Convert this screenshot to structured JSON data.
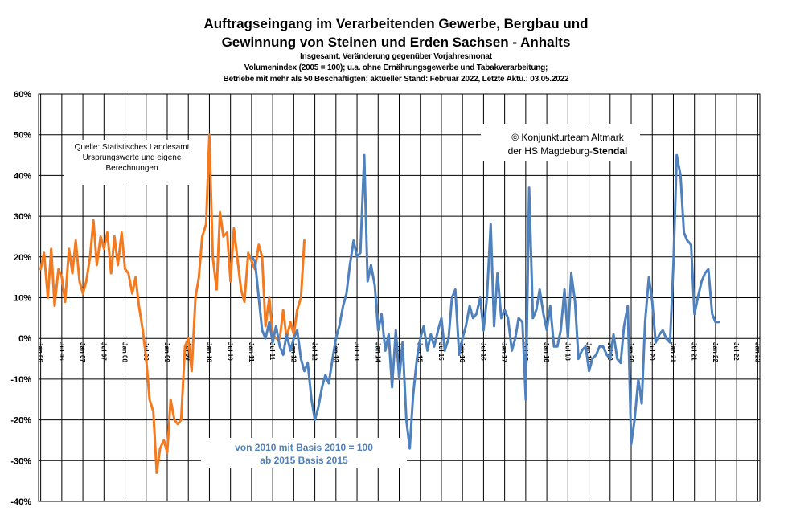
{
  "chart_data": {
    "type": "line",
    "title": "Auftragseingang  im Verarbeitenden  Gewerbe, Bergbau  und",
    "title_line2": "Gewinnung  von Steinen  und  Erden Sachsen - Anhalts",
    "subtitle_lines": [
      "Insgesamt, Veränderung gegenüber Vorjahresmonat",
      "Volumenindex (2005 = 100); u.a. ohne Ernährungsgewerbe und Tabakverarbeitung;",
      "Betriebe mit mehr als 50 Beschäftigten; aktueller Stand: Februar  2022,  Letzte Aktu.: 03.05.2022"
    ],
    "ylim": [
      -40,
      60
    ],
    "yticks": [
      60,
      50,
      40,
      30,
      20,
      10,
      0,
      -10,
      -20,
      -30,
      -40
    ],
    "ytick_labels": [
      "60%",
      "50%",
      "40%",
      "30%",
      "20%",
      "10%",
      "0%",
      "-10%",
      "-20%",
      "-30%",
      "-40%"
    ],
    "xlim": [
      2005.95,
      2023.05
    ],
    "xticks": [
      2006,
      2006.5,
      2007,
      2007.5,
      2008,
      2008.5,
      2009,
      2009.5,
      2010,
      2010.5,
      2011,
      2011.5,
      2012,
      2012.5,
      2013,
      2013.5,
      2014,
      2014.5,
      2015,
      2015.5,
      2016,
      2016.5,
      2017,
      2017.5,
      2018,
      2018.5,
      2019,
      2019.5,
      2020,
      2020.5,
      2021,
      2021.5,
      2022,
      2022.5,
      2023
    ],
    "xtick_labels": [
      "Jan 06",
      "Jul 06",
      "Jan 07",
      "Jul 07",
      "Jan 08",
      "Jul 08",
      "Jan 09",
      "Jul 09",
      "Jan 10",
      "Jul 10",
      "Jan 11",
      "Jul 11",
      "Jan 12",
      "Jul 12",
      "Jan 13",
      "Jul 13",
      "Jan 14",
      "Jul 14",
      "Jan 15",
      "Jul 15",
      "Jan 16",
      "Jul 16",
      "Jan 17",
      "Jul 17",
      "Jan 18",
      "Jul 18",
      "Jan 19",
      "Jul 19",
      "Jan 20",
      "Jul 20",
      "Jan 21",
      "Jul 21",
      "Jan 22",
      "Jul 22",
      "Jan 23"
    ],
    "grid": true,
    "series": [
      {
        "color": "#f47a1f",
        "x": [
          2006.0,
          2006.08,
          2006.17,
          2006.25,
          2006.33,
          2006.42,
          2006.5,
          2006.58,
          2006.67,
          2006.75,
          2006.83,
          2006.92,
          2007.0,
          2007.08,
          2007.17,
          2007.25,
          2007.33,
          2007.42,
          2007.5,
          2007.58,
          2007.67,
          2007.75,
          2007.83,
          2007.92,
          2008.0,
          2008.08,
          2008.17,
          2008.25,
          2008.33,
          2008.42,
          2008.5,
          2008.58,
          2008.67,
          2008.75,
          2008.83,
          2008.92,
          2009.0,
          2009.08,
          2009.17,
          2009.25,
          2009.33,
          2009.42,
          2009.5,
          2009.58,
          2009.67,
          2009.75,
          2009.83,
          2009.92,
          2010.0,
          2010.08,
          2010.17,
          2010.25,
          2010.33,
          2010.42,
          2010.5,
          2010.58,
          2010.67,
          2010.75,
          2010.83,
          2010.92,
          2011.0,
          2011.08,
          2011.17,
          2011.25,
          2011.33,
          2011.42,
          2011.5,
          2011.58,
          2011.67,
          2011.75,
          2011.83,
          2011.92,
          2012.0,
          2012.08,
          2012.17,
          2012.25
        ],
        "values": [
          17,
          21,
          10,
          22,
          8,
          17,
          15,
          9,
          22,
          16,
          24,
          14,
          11,
          14,
          20,
          29,
          18,
          25,
          22,
          26,
          16,
          25,
          18,
          26,
          17,
          16,
          11,
          15,
          8,
          2,
          -5,
          -15,
          -18,
          -33,
          -27,
          -25,
          -28,
          -15,
          -20,
          -21,
          -20,
          -2,
          0,
          -8,
          10,
          15,
          25,
          28,
          50,
          20,
          12,
          31,
          25,
          26,
          14,
          27,
          19,
          12,
          9,
          21,
          19,
          17,
          23,
          20,
          3,
          10,
          1,
          0,
          0,
          7,
          0,
          4,
          1,
          7,
          10,
          24
        ]
      },
      {
        "color": "#4f81bd",
        "x": [
          2011.0,
          2011.08,
          2011.17,
          2011.25,
          2011.33,
          2011.42,
          2011.5,
          2011.58,
          2011.67,
          2011.75,
          2011.83,
          2011.92,
          2012.0,
          2012.08,
          2012.17,
          2012.25,
          2012.33,
          2012.42,
          2012.5,
          2012.58,
          2012.67,
          2012.75,
          2012.83,
          2012.92,
          2013.0,
          2013.08,
          2013.17,
          2013.25,
          2013.33,
          2013.42,
          2013.5,
          2013.58,
          2013.67,
          2013.75,
          2013.83,
          2013.92,
          2014.0,
          2014.08,
          2014.17,
          2014.25,
          2014.33,
          2014.42,
          2014.5,
          2014.58,
          2014.67,
          2014.75,
          2014.83,
          2014.92,
          2015.0,
          2015.08,
          2015.17,
          2015.25,
          2015.33,
          2015.42,
          2015.5,
          2015.58,
          2015.67,
          2015.75,
          2015.83,
          2015.92,
          2016.0,
          2016.08,
          2016.17,
          2016.25,
          2016.33,
          2016.42,
          2016.5,
          2016.58,
          2016.67,
          2016.75,
          2016.83,
          2016.92,
          2017.0,
          2017.08,
          2017.17,
          2017.25,
          2017.33,
          2017.42,
          2017.5,
          2017.58,
          2017.67,
          2017.75,
          2017.83,
          2017.92,
          2018.0,
          2018.08,
          2018.17,
          2018.25,
          2018.33,
          2018.42,
          2018.5,
          2018.58,
          2018.67,
          2018.75,
          2018.83,
          2018.92,
          2019.0,
          2019.08,
          2019.17,
          2019.25,
          2019.33,
          2019.42,
          2019.5,
          2019.58,
          2019.67,
          2019.75,
          2019.83,
          2019.92,
          2020.0,
          2020.08,
          2020.17,
          2020.25,
          2020.33,
          2020.42,
          2020.5,
          2020.58,
          2020.67,
          2020.75,
          2020.83,
          2020.92,
          2021.0,
          2021.08,
          2021.17,
          2021.25,
          2021.33,
          2021.42,
          2021.5,
          2021.58,
          2021.67,
          2021.75,
          2021.83,
          2021.92,
          2022.0,
          2022.08
        ],
        "values": [
          20,
          19,
          10,
          2,
          0,
          4,
          -1,
          3,
          -2,
          -4,
          1,
          -3,
          0,
          2,
          -5,
          -8,
          -6,
          -15,
          -20,
          -17,
          -12,
          -9,
          -11,
          -5,
          0,
          3,
          8,
          11,
          18,
          24,
          20,
          21,
          45,
          14,
          18,
          13,
          2,
          6,
          -3,
          1,
          -12,
          2,
          -10,
          -1,
          -20,
          -27,
          -14,
          -5,
          0,
          3,
          -3,
          1,
          -2,
          2,
          5,
          -3,
          0,
          10,
          12,
          -4,
          0,
          3,
          8,
          5,
          6,
          10,
          2,
          10,
          28,
          3,
          16,
          5,
          7,
          5,
          -3,
          0,
          5,
          4,
          -15,
          37,
          5,
          7,
          12,
          6,
          2,
          8,
          -2,
          -2,
          2,
          12,
          0,
          16,
          9,
          -5,
          -3,
          -2,
          -8,
          -5,
          -4,
          -2,
          -2,
          -4,
          -5,
          1,
          -5,
          -6,
          3,
          8,
          -26,
          -20,
          -10,
          -16,
          4,
          15,
          9,
          -1,
          1,
          2,
          0,
          -1,
          18,
          45,
          40,
          26,
          24,
          23,
          6,
          10,
          14,
          16,
          17,
          6,
          4,
          4
        ]
      }
    ],
    "annotations": {
      "source_lines": [
        "Quelle: Statistisches Landesamt",
        "Ursprungswerte und eigene",
        "Berechnungen"
      ],
      "copyright_line1": "© Konjunkturteam  Altmark",
      "copyright_line2_prefix": "der HS Magdeburg-",
      "copyright_line2_bold": "Stendal",
      "basis_line1": "von 2010  mit Basis  2010 = 100",
      "basis_line2": "ab 2015  Basis  2015"
    }
  }
}
